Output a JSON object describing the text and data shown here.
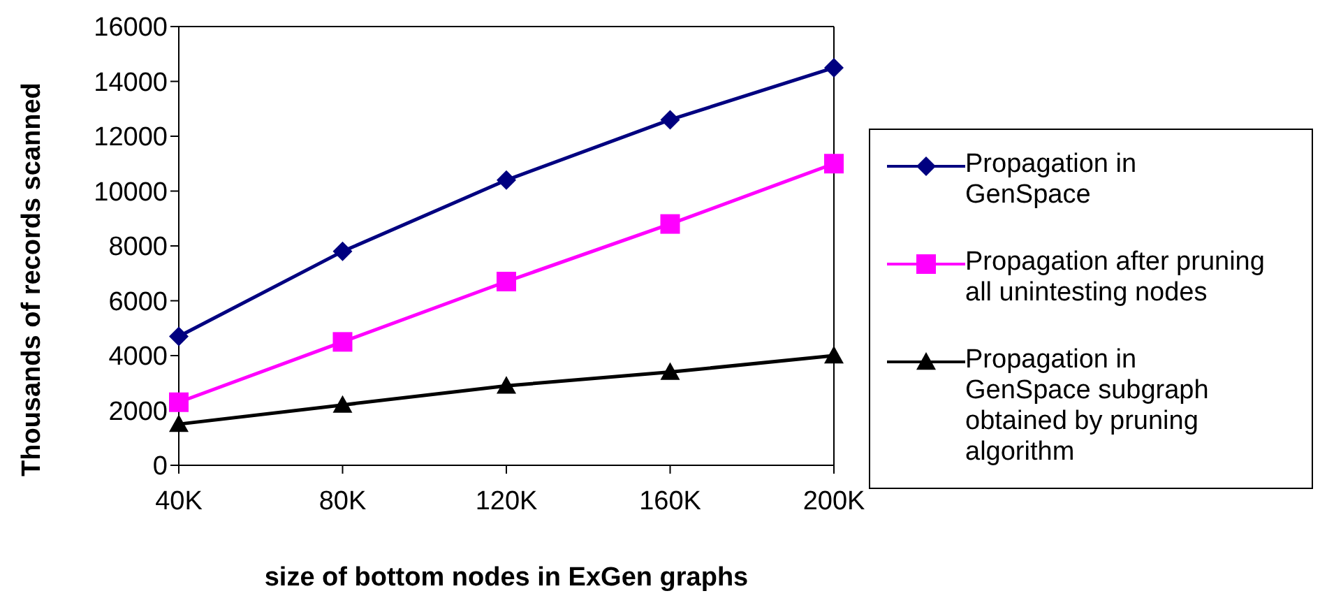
{
  "chart_data": {
    "type": "line",
    "xlabel": "size of bottom nodes in ExGen graphs",
    "ylabel": "Thousands of records scanned",
    "categories": [
      "40K",
      "80K",
      "120K",
      "160K",
      "200K"
    ],
    "series": [
      {
        "name": "Propagation in GenSpace",
        "color": "#000080",
        "marker": "diamond",
        "values": [
          4700,
          7800,
          10400,
          12600,
          14500
        ]
      },
      {
        "name": "Propagation after pruning all unintesting nodes",
        "color": "#ff00ff",
        "marker": "square",
        "values": [
          2300,
          4500,
          6700,
          8800,
          11000
        ]
      },
      {
        "name": "Propagation in GenSpace subgraph obtained by pruning algorithm",
        "color": "#000000",
        "marker": "triangle",
        "values": [
          1500,
          2200,
          2900,
          3400,
          4000
        ]
      }
    ],
    "ylim": [
      0,
      16000
    ],
    "yticks": [
      0,
      2000,
      4000,
      6000,
      8000,
      10000,
      12000,
      14000,
      16000
    ],
    "grid": false,
    "legend": "right"
  }
}
